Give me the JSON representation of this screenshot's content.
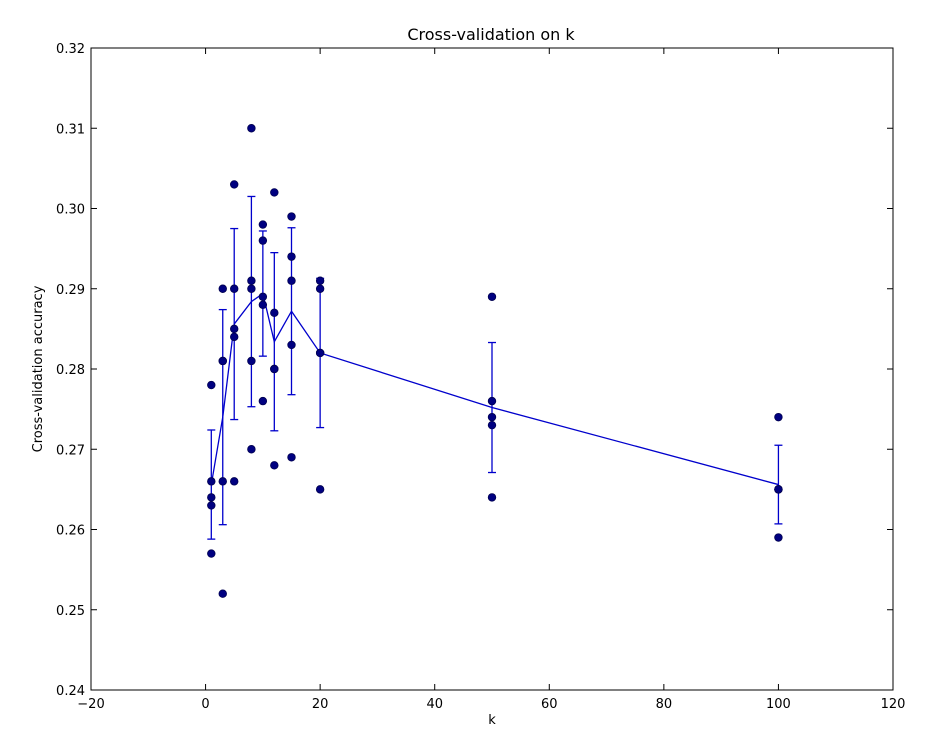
{
  "chart_data": {
    "type": "scatter",
    "title": "Cross-validation on k",
    "xlabel": "k",
    "ylabel": "Cross-validation accuracy",
    "xlim": [
      -20,
      120
    ],
    "ylim": [
      0.24,
      0.32
    ],
    "xticks": [
      "−20",
      "0",
      "20",
      "40",
      "60",
      "80",
      "100",
      "120"
    ],
    "yticks": [
      "0.24",
      "0.25",
      "0.26",
      "0.27",
      "0.28",
      "0.29",
      "0.30",
      "0.31",
      "0.32"
    ],
    "grid": false,
    "point_color": "#000080",
    "line_color": "#0000cc",
    "points": [
      {
        "k": 1,
        "accuracies": [
          0.263,
          0.257,
          0.264,
          0.278,
          0.266
        ]
      },
      {
        "k": 3,
        "accuracies": [
          0.252,
          0.281,
          0.29,
          0.281,
          0.266
        ]
      },
      {
        "k": 5,
        "accuracies": [
          0.284,
          0.303,
          0.29,
          0.285,
          0.266
        ]
      },
      {
        "k": 8,
        "accuracies": [
          0.27,
          0.31,
          0.291,
          0.281,
          0.29
        ]
      },
      {
        "k": 10,
        "accuracies": [
          0.276,
          0.298,
          0.289,
          0.288,
          0.296
        ]
      },
      {
        "k": 12,
        "accuracies": [
          0.268,
          0.302,
          0.28,
          0.287,
          0.28
        ]
      },
      {
        "k": 15,
        "accuracies": [
          0.269,
          0.299,
          0.291,
          0.294,
          0.283
        ]
      },
      {
        "k": 20,
        "accuracies": [
          0.265,
          0.291,
          0.29,
          0.282,
          0.282
        ]
      },
      {
        "k": 50,
        "accuracies": [
          0.264,
          0.289,
          0.276,
          0.274,
          0.273
        ]
      },
      {
        "k": 100,
        "accuracies": [
          0.259,
          0.274,
          0.265,
          0.265,
          0.265
        ]
      }
    ],
    "mean_line": {
      "x": [
        1,
        3,
        5,
        8,
        10,
        12,
        15,
        20,
        50,
        100
      ],
      "mean": [
        0.2656,
        0.274,
        0.2856,
        0.2884,
        0.2894,
        0.2834,
        0.2872,
        0.282,
        0.2752,
        0.2656
      ],
      "std": [
        0.0068,
        0.0134,
        0.0119,
        0.0131,
        0.0078,
        0.0111,
        0.0104,
        0.0093,
        0.0081,
        0.0049
      ]
    }
  }
}
